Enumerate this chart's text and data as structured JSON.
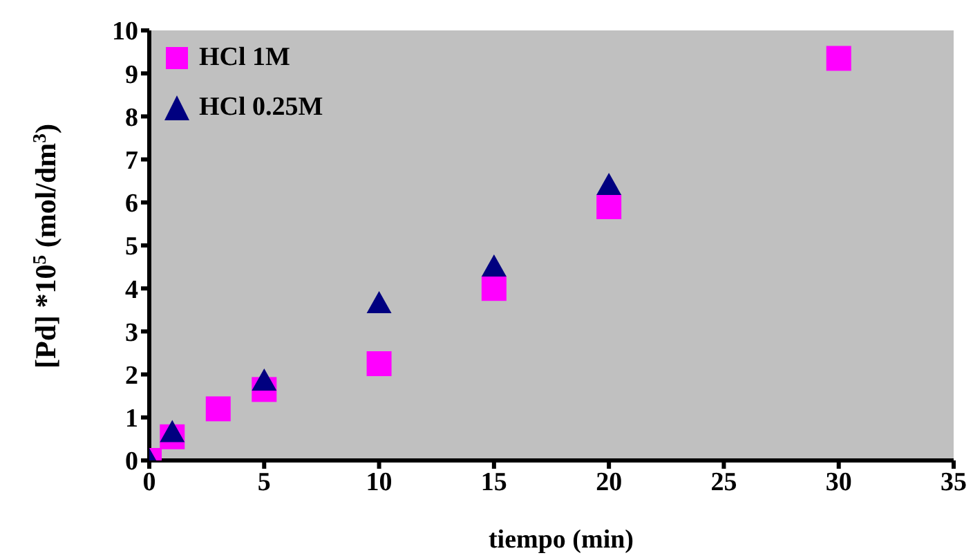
{
  "chart_data": {
    "type": "scatter",
    "xlabel": "tiempo (min)",
    "ylabel": "[Pd] *10$^{5}$ (mol/dm$^{3}$)",
    "xlim": [
      0,
      35
    ],
    "xticks": [
      0,
      5,
      10,
      15,
      20,
      25,
      30,
      35
    ],
    "ylim": [
      0,
      10
    ],
    "yticks": [
      0,
      1,
      2,
      3,
      4,
      5,
      6,
      7,
      8,
      9,
      10
    ],
    "grid": false,
    "legend": "top left",
    "series": [
      {
        "name": "HCl 1M",
        "color": "#ff00ff",
        "marker": "square",
        "x": [
          0,
          1,
          3,
          5,
          10,
          15,
          20,
          30
        ],
        "values": [
          0,
          0.55,
          1.2,
          1.65,
          2.25,
          4.0,
          5.9,
          9.35
        ]
      },
      {
        "name": "HCl 0.25M",
        "color": "#000080",
        "marker": "triangle",
        "x": [
          0,
          1,
          5,
          10,
          15,
          20
        ],
        "values": [
          0,
          0.65,
          1.85,
          3.65,
          4.5,
          6.4
        ]
      }
    ]
  }
}
